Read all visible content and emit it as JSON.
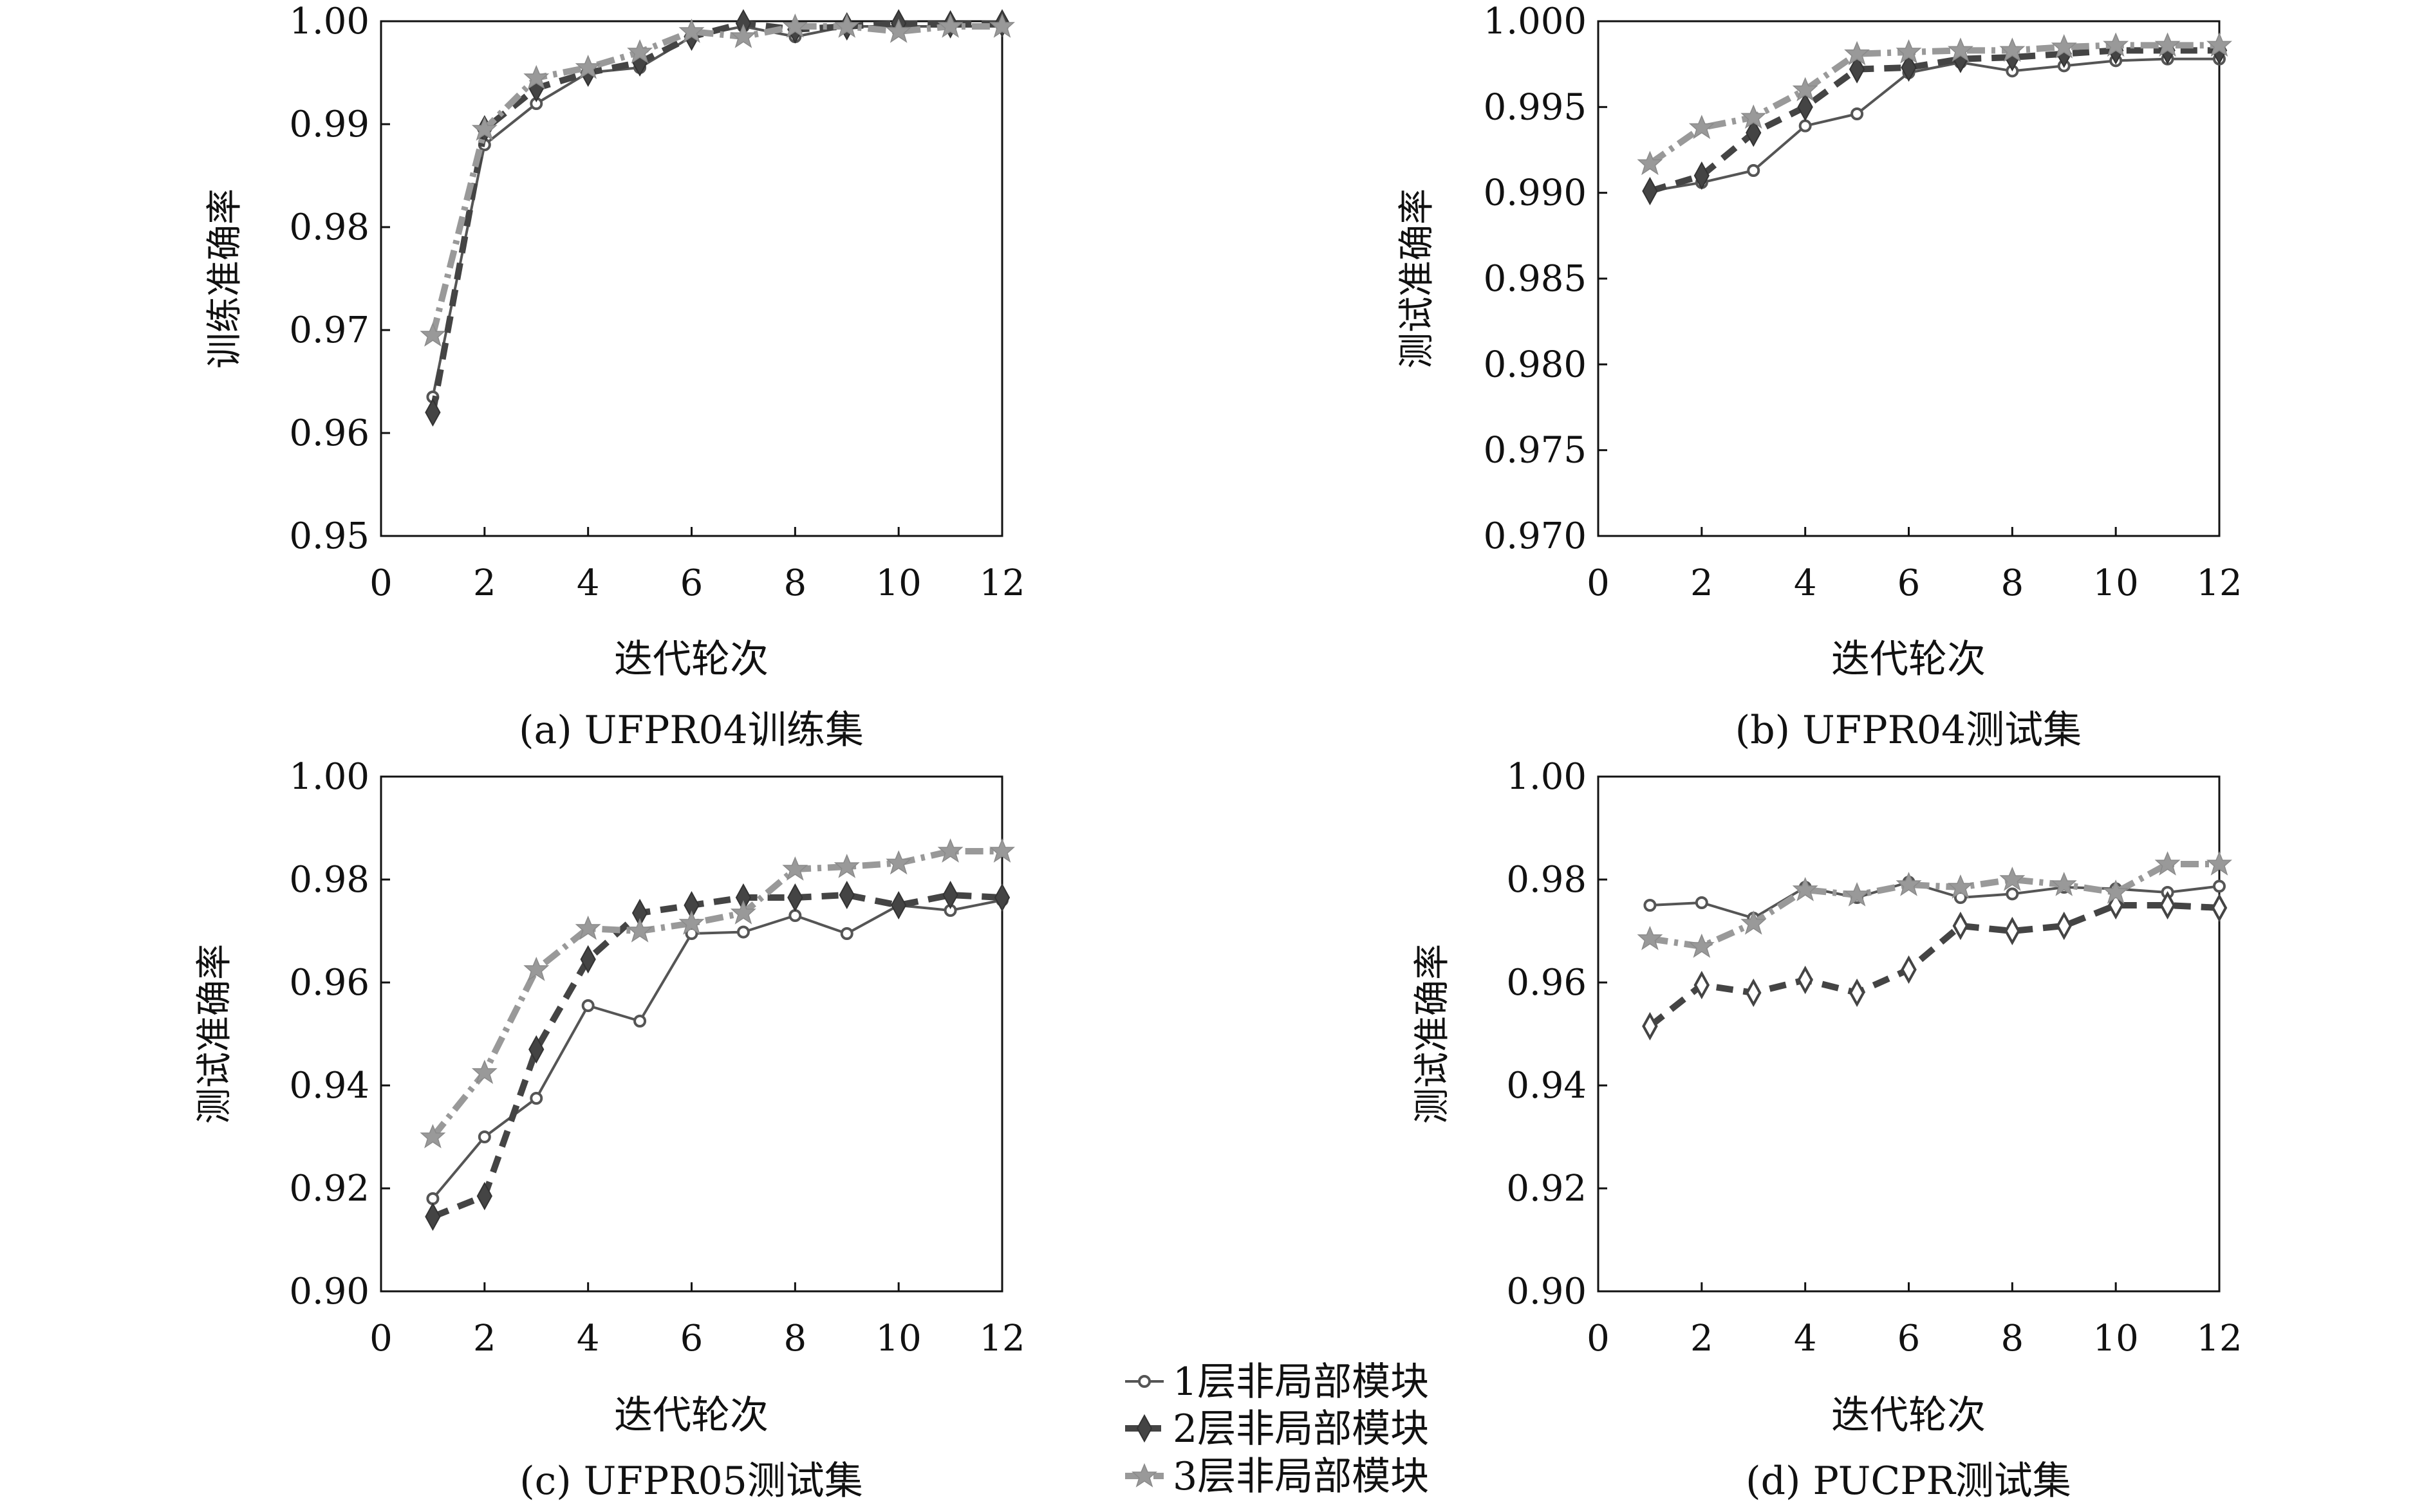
{
  "chart_data": [
    {
      "type": "line",
      "caption": "(a) UFPR04训练集",
      "xlabel": "迭代轮次",
      "ylabel": "训练准确率",
      "xlim": [
        0,
        12
      ],
      "ylim": [
        0.95,
        1.0
      ],
      "xticks": [
        "0",
        "2",
        "4",
        "6",
        "8",
        "10",
        "12"
      ],
      "yticks": [
        "0.95",
        "0.96",
        "0.97",
        "0.98",
        "0.99",
        "1.00"
      ],
      "x": [
        1,
        2,
        3,
        4,
        5,
        6,
        7,
        8,
        9,
        10,
        11,
        12
      ],
      "series": [
        {
          "name": "1层非局部模块",
          "values": [
            0.9635,
            0.988,
            0.992,
            0.995,
            0.9955,
            0.9985,
            0.9995,
            0.9985,
            0.9995,
            0.9995,
            0.9995,
            0.9995
          ]
        },
        {
          "name": "2层非局部模块",
          "values": [
            0.962,
            0.9895,
            0.9935,
            0.995,
            0.996,
            0.9985,
            0.9998,
            0.9992,
            0.9995,
            0.9998,
            0.9997,
            0.9998
          ]
        },
        {
          "name": "3层非局部模块",
          "values": [
            0.9695,
            0.9895,
            0.9945,
            0.9955,
            0.997,
            0.999,
            0.9985,
            0.9995,
            0.9995,
            0.999,
            0.9995,
            0.9995
          ]
        }
      ]
    },
    {
      "type": "line",
      "caption": "(b) UFPR04测试集",
      "xlabel": "迭代轮次",
      "ylabel": "测试准确率",
      "xlim": [
        0,
        12
      ],
      "ylim": [
        0.97,
        1.0
      ],
      "xticks": [
        "0",
        "2",
        "4",
        "6",
        "8",
        "10",
        "12"
      ],
      "yticks": [
        "0.970",
        "0.975",
        "0.980",
        "0.985",
        "0.990",
        "0.995",
        "1.000"
      ],
      "x": [
        1,
        2,
        3,
        4,
        5,
        6,
        7,
        8,
        9,
        10,
        11,
        12
      ],
      "series": [
        {
          "name": "1层非局部模块",
          "values": [
            0.9901,
            0.9906,
            0.9913,
            0.9939,
            0.9946,
            0.997,
            0.9976,
            0.9971,
            0.9974,
            0.9977,
            0.9978,
            0.9978
          ]
        },
        {
          "name": "2层非局部模块",
          "values": [
            0.9901,
            0.991,
            0.9935,
            0.995,
            0.9972,
            0.9973,
            0.9978,
            0.9979,
            0.9981,
            0.9983,
            0.9983,
            0.9983
          ]
        },
        {
          "name": "3层非局部模块",
          "values": [
            0.9917,
            0.9938,
            0.9944,
            0.996,
            0.9981,
            0.9982,
            0.9983,
            0.9983,
            0.9985,
            0.9986,
            0.9986,
            0.9986
          ]
        }
      ]
    },
    {
      "type": "line",
      "caption": "(c) UFPR05测试集",
      "xlabel": "迭代轮次",
      "ylabel": "测试准确率",
      "xlim": [
        0,
        12
      ],
      "ylim": [
        0.9,
        1.0
      ],
      "xticks": [
        "0",
        "2",
        "4",
        "6",
        "8",
        "10",
        "12"
      ],
      "yticks": [
        "0.90",
        "0.92",
        "0.94",
        "0.96",
        "0.98",
        "1.00"
      ],
      "x": [
        1,
        2,
        3,
        4,
        5,
        6,
        7,
        8,
        9,
        10,
        11,
        12
      ],
      "series": [
        {
          "name": "1层非局部模块",
          "values": [
            0.918,
            0.93,
            0.9375,
            0.9555,
            0.9525,
            0.9695,
            0.9698,
            0.973,
            0.9695,
            0.975,
            0.974,
            0.976
          ]
        },
        {
          "name": "2层非局部模块",
          "values": [
            0.9145,
            0.9185,
            0.947,
            0.9645,
            0.9735,
            0.975,
            0.9765,
            0.9765,
            0.977,
            0.975,
            0.977,
            0.9765
          ]
        },
        {
          "name": "3层非局部模块",
          "values": [
            0.93,
            0.9425,
            0.9625,
            0.9705,
            0.97,
            0.9715,
            0.9735,
            0.982,
            0.9825,
            0.9832,
            0.9855,
            0.9855
          ]
        }
      ]
    },
    {
      "type": "line",
      "caption": "(d) PUCPR测试集",
      "xlabel": "迭代轮次",
      "ylabel": "测试准确率",
      "xlim": [
        0,
        12
      ],
      "ylim": [
        0.9,
        1.0
      ],
      "xticks": [
        "0",
        "2",
        "4",
        "6",
        "8",
        "10",
        "12"
      ],
      "yticks": [
        "0.90",
        "0.92",
        "0.94",
        "0.96",
        "0.98",
        "1.00"
      ],
      "x": [
        1,
        2,
        3,
        4,
        5,
        6,
        7,
        8,
        9,
        10,
        11,
        12
      ],
      "series": [
        {
          "name": "1层非局部模块",
          "values": [
            0.975,
            0.9755,
            0.9725,
            0.9785,
            0.9765,
            0.9795,
            0.9765,
            0.9772,
            0.9785,
            0.9782,
            0.9775,
            0.9787
          ]
        },
        {
          "name": "2层非局部模块",
          "values": [
            0.9515,
            0.9595,
            0.958,
            0.9605,
            0.958,
            0.9625,
            0.971,
            0.97,
            0.971,
            0.975,
            0.975,
            0.9745
          ]
        },
        {
          "name": "3层非局部模块",
          "values": [
            0.9685,
            0.967,
            0.9715,
            0.978,
            0.977,
            0.979,
            0.9785,
            0.98,
            0.979,
            0.9775,
            0.983,
            0.983
          ]
        }
      ]
    }
  ],
  "legend": {
    "entries": [
      "1层非局部模块",
      "2层非局部模块",
      "3层非局部模块"
    ]
  },
  "style": {
    "series_colors": [
      "#555555",
      "#444444",
      "#999999"
    ],
    "series_markers": [
      "circle",
      "diamond",
      "star"
    ],
    "series_dash": [
      "solid",
      "dashed",
      "dashdot"
    ]
  }
}
